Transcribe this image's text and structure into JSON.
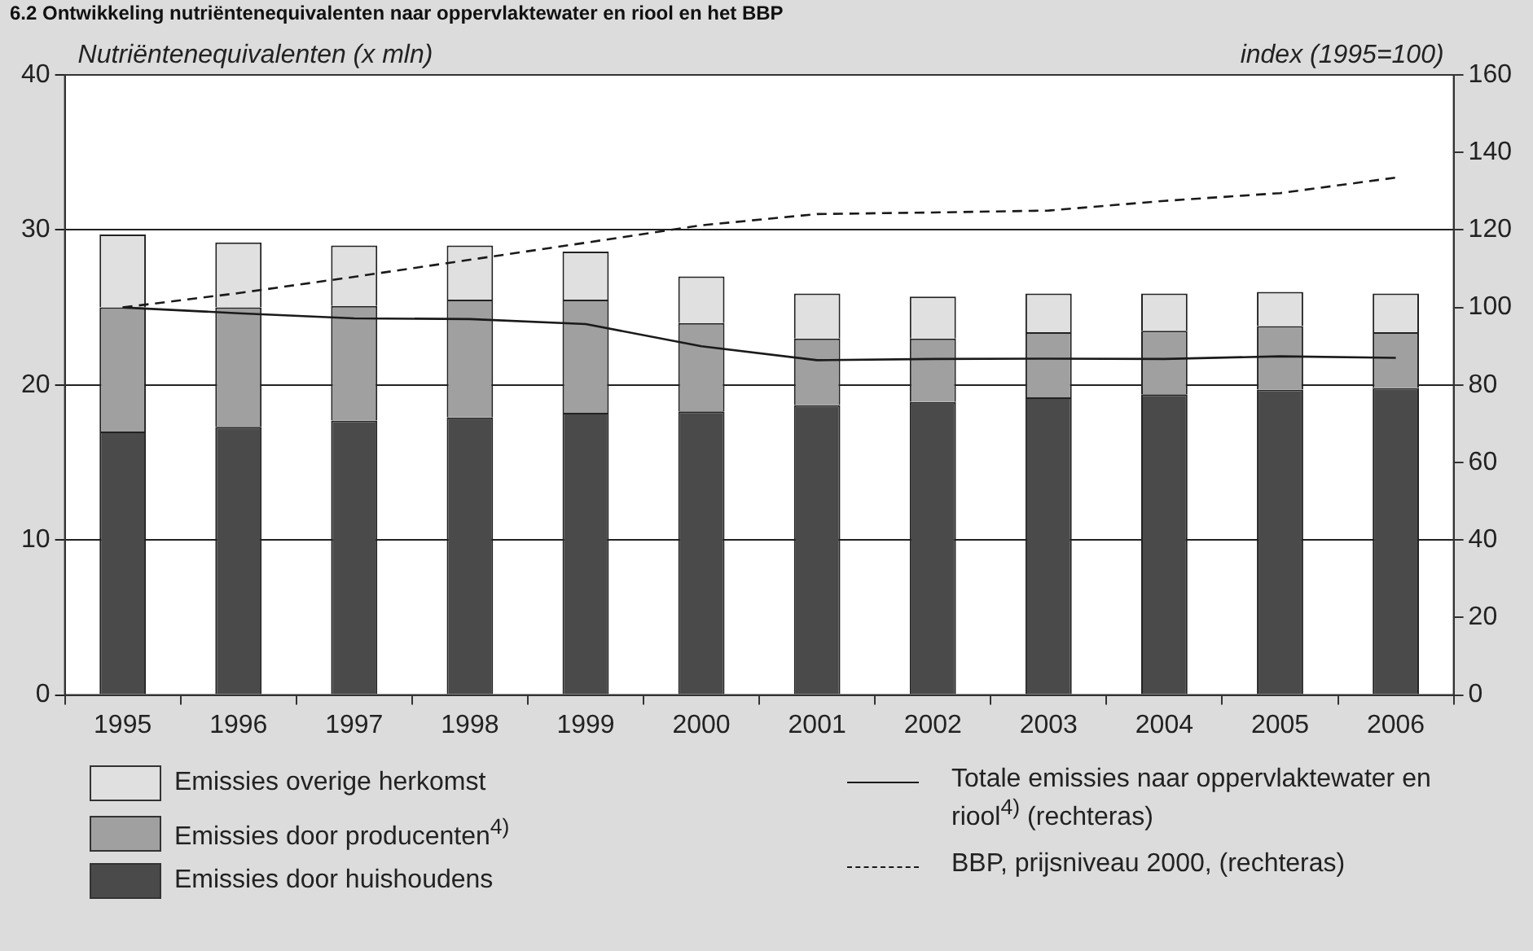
{
  "chart_data": {
    "type": "bar",
    "title": "6.2 Ontwikkeling nutriëntenequivalenten naar oppervlaktewater en riool en het BBP",
    "ylabel": "Nutriëntenequivalenten (x mln)",
    "y2label": "index (1995=100)",
    "categories": [
      "1995",
      "1996",
      "1997",
      "1998",
      "1999",
      "2000",
      "2001",
      "2002",
      "2003",
      "2004",
      "2005",
      "2006"
    ],
    "stacked": true,
    "series": [
      {
        "name": "Emissies door huishoudens",
        "color": "#4a4a4a",
        "values": [
          17.0,
          17.3,
          17.7,
          17.9,
          18.2,
          18.3,
          18.7,
          18.9,
          19.2,
          19.4,
          19.7,
          19.8
        ]
      },
      {
        "name": "Emissies door producenten$^{4)}$",
        "color": "#a0a0a0",
        "values": [
          8.0,
          7.7,
          7.4,
          7.6,
          7.3,
          5.7,
          4.3,
          4.1,
          4.2,
          4.1,
          4.1,
          3.6
        ]
      },
      {
        "name": "Emissies overige herkomst",
        "color": "#e0e0e0",
        "values": [
          4.7,
          4.2,
          3.9,
          3.5,
          3.1,
          3.0,
          2.9,
          2.7,
          2.5,
          2.4,
          2.2,
          2.5
        ]
      },
      {
        "name": "Totale emissies naar oppervlaktewater en riool$^{4)}$ (rechteras)",
        "type": "line",
        "axis": "y2",
        "line_style": "solid",
        "color": "#1a1a1a",
        "values": [
          100,
          98.5,
          97.2,
          97,
          95.7,
          90,
          86.4,
          86.7,
          86.8,
          86.7,
          87.4,
          87
        ]
      },
      {
        "name": "BBP, prijsniveau 2000, (rechteras)",
        "type": "line",
        "axis": "y2",
        "line_style": "dashed",
        "color": "#1a1a1a",
        "values": [
          100,
          103.7,
          107.9,
          112.3,
          116.7,
          121.2,
          124.1,
          124.5,
          125,
          127.5,
          129.5,
          133.5
        ]
      }
    ],
    "ylim": [
      0,
      40
    ],
    "yticks": [
      0,
      10,
      20,
      30,
      40
    ],
    "y2lim": [
      0,
      160
    ],
    "y2ticks": [
      0,
      20,
      40,
      60,
      80,
      100,
      120,
      140,
      160
    ],
    "grid": "y",
    "legend": "bottom",
    "marker": "none"
  }
}
